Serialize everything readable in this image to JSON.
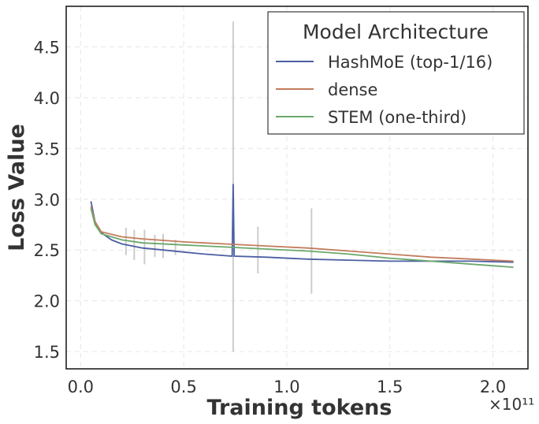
{
  "chart_data": {
    "type": "line",
    "xlabel": "Training tokens",
    "ylabel": "Loss Value",
    "x_multiplier_label": "×10¹¹",
    "xlim": [
      -0.07,
      2.17
    ],
    "ylim": [
      1.33,
      4.9
    ],
    "xticks": [
      "0.0",
      "0.5",
      "1.0",
      "1.5",
      "2.0"
    ],
    "xtick_values": [
      0,
      0.5,
      1.0,
      1.5,
      2.0
    ],
    "yticks": [
      "1.5",
      "2.0",
      "2.5",
      "3.0",
      "3.5",
      "4.0",
      "4.5"
    ],
    "ytick_values": [
      1.5,
      2.0,
      2.5,
      3.0,
      3.5,
      4.0,
      4.5
    ],
    "grid": true,
    "legend": {
      "title": "Model Architecture",
      "placement": "top-right"
    },
    "series": [
      {
        "name": "HashMoE (top-1/16)",
        "color": "#4c5fa3",
        "x": [
          0.05,
          0.07,
          0.1,
          0.15,
          0.2,
          0.3,
          0.4,
          0.5,
          0.6,
          0.735,
          0.74,
          0.745,
          0.9,
          1.1,
          1.3,
          1.5,
          1.7,
          1.9,
          2.1
        ],
        "y": [
          2.98,
          2.78,
          2.67,
          2.6,
          2.56,
          2.52,
          2.5,
          2.48,
          2.46,
          2.44,
          3.15,
          2.44,
          2.43,
          2.41,
          2.4,
          2.39,
          2.39,
          2.39,
          2.38
        ]
      },
      {
        "name": "dense",
        "color": "#c27c5c",
        "x": [
          0.05,
          0.07,
          0.1,
          0.2,
          0.3,
          0.5,
          0.7,
          0.9,
          1.1,
          1.3,
          1.5,
          1.7,
          1.9,
          2.1
        ],
        "y": [
          2.93,
          2.78,
          2.68,
          2.63,
          2.61,
          2.58,
          2.56,
          2.54,
          2.52,
          2.49,
          2.46,
          2.43,
          2.41,
          2.39
        ]
      },
      {
        "name": "STEM (one-third)",
        "color": "#6aa86a",
        "x": [
          0.05,
          0.07,
          0.1,
          0.2,
          0.3,
          0.5,
          0.7,
          0.9,
          1.1,
          1.3,
          1.5,
          1.7,
          1.9,
          2.1
        ],
        "y": [
          2.91,
          2.75,
          2.66,
          2.6,
          2.57,
          2.55,
          2.53,
          2.51,
          2.49,
          2.46,
          2.42,
          2.39,
          2.36,
          2.33
        ]
      }
    ],
    "error_bars": {
      "color": "#cccccc",
      "x": [
        0.22,
        0.26,
        0.31,
        0.36,
        0.4,
        0.46,
        0.74,
        0.86,
        1.12
      ],
      "low": [
        2.45,
        2.4,
        2.36,
        2.43,
        2.42,
        2.45,
        1.5,
        2.27,
        2.07
      ],
      "high": [
        2.72,
        2.7,
        2.7,
        2.65,
        2.66,
        2.6,
        4.75,
        2.73,
        2.91
      ]
    }
  }
}
